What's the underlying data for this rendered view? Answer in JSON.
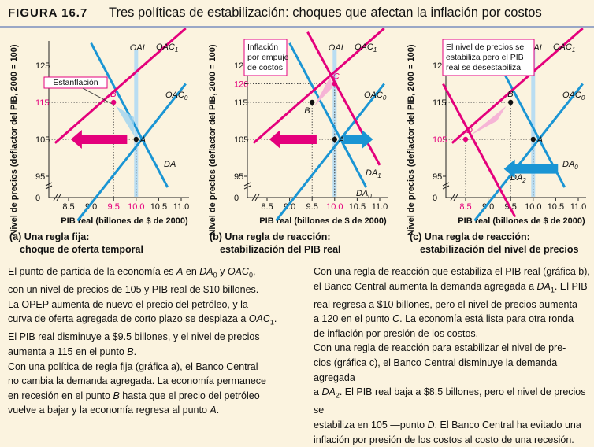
{
  "header": {
    "figure_label": "FIGURA 16.7",
    "title": "Tres políticas de estabilización: choques que afectan la inflación por costos"
  },
  "axes": {
    "ylabel": "Nivel de precios (deflactor del PIB, 2000 = 100)",
    "xlabel": "PIB real (billones de $ de 2000)",
    "origin": "0"
  },
  "curve_labels": {
    "oal": "OAL",
    "oac": "OAC",
    "oac_sub1": "1",
    "oac_sub0": "0",
    "da": "DA",
    "da_sub0": "0",
    "da_sub1": "1",
    "da_sub2": "2"
  },
  "panels": [
    {
      "caption_line1": "(a) Una regla fija:",
      "caption_line2": "choque de oferta temporal",
      "callout": [
        "Estanflación"
      ],
      "points": [
        "B",
        "A"
      ]
    },
    {
      "caption_line1": "(b) Una regla de reacción:",
      "caption_line2": "estabilización del PIB real",
      "callout": [
        "Inflación",
        "por empuje",
        "de costos"
      ],
      "points": [
        "B",
        "C",
        "A"
      ]
    },
    {
      "caption_line1": "(c) Una regla de reacción:",
      "caption_line2": "estabilización del nivel de precios",
      "callout": [
        "El nivel de precios se",
        "estabiliza pero el PIB",
        "real se desestabiliza"
      ],
      "points": [
        "B",
        "D",
        "A"
      ]
    }
  ],
  "chart_data": [
    {
      "type": "line",
      "xlabel": "PIB real (billones de $ de 2000)",
      "ylabel": "Nivel de precios (deflactor del PIB, 2000 = 100)",
      "xlim": [
        8.5,
        11.0
      ],
      "ylim": [
        95,
        125
      ],
      "x_ticks": [
        "8.5",
        "9.0",
        "9.5",
        "10.0",
        "10.5",
        "11.0"
      ],
      "y_ticks": [
        "95",
        "105",
        "115",
        "125"
      ],
      "highlight_x": [
        "9.5",
        "10.0"
      ],
      "highlight_y": [
        "115"
      ],
      "series": [
        {
          "name": "OAL",
          "x": [
            10.0,
            10.0
          ],
          "y": [
            92,
            133
          ]
        },
        {
          "name": "OAC1",
          "x": [
            8.2,
            11.1
          ],
          "y": [
            104,
            135
          ]
        },
        {
          "name": "OAC0",
          "x": [
            8.7,
            11.1
          ],
          "y": [
            83,
            120
          ]
        },
        {
          "name": "DA",
          "x": [
            9.0,
            10.7
          ],
          "y": [
            131,
            92
          ]
        }
      ],
      "points": [
        {
          "label": "A",
          "x": 10.0,
          "y": 105
        },
        {
          "label": "B",
          "x": 9.5,
          "y": 115
        }
      ],
      "colors": {
        "oac1": "#e4007c",
        "oac0": "#1a95d4",
        "da": "#1a95d4",
        "oal": "#b9ddf2"
      }
    },
    {
      "type": "line",
      "xlabel": "PIB real (billones de $ de 2000)",
      "ylabel": "Nivel de precios (deflactor del PIB, 2000 = 100)",
      "xlim": [
        8.5,
        11.0
      ],
      "ylim": [
        95,
        125
      ],
      "x_ticks": [
        "8.5",
        "9.0",
        "9.5",
        "10.0",
        "10.5",
        "11.0"
      ],
      "y_ticks": [
        "95",
        "105",
        "115",
        "120",
        "125"
      ],
      "highlight_x": [
        "10.0"
      ],
      "highlight_y": [
        "120"
      ],
      "series": [
        {
          "name": "OAL",
          "x": [
            10.0,
            10.0
          ],
          "y": [
            92,
            133
          ]
        },
        {
          "name": "OAC1",
          "x": [
            8.2,
            11.1
          ],
          "y": [
            104,
            135
          ]
        },
        {
          "name": "OAC0",
          "x": [
            8.7,
            11.1
          ],
          "y": [
            83,
            120
          ]
        },
        {
          "name": "DA0",
          "x": [
            9.0,
            10.7
          ],
          "y": [
            131,
            92
          ]
        },
        {
          "name": "DA1",
          "x": [
            9.4,
            11.0
          ],
          "y": [
            134,
            98
          ]
        }
      ],
      "points": [
        {
          "label": "A",
          "x": 10.0,
          "y": 105
        },
        {
          "label": "B",
          "x": 9.5,
          "y": 115
        },
        {
          "label": "C",
          "x": 10.0,
          "y": 120
        }
      ],
      "colors": {
        "oac1": "#e4007c",
        "oac0": "#1a95d4",
        "da0": "#1a95d4",
        "da1": "#e4007c",
        "oal": "#b9ddf2"
      }
    },
    {
      "type": "line",
      "xlabel": "PIB real (billones de $ de 2000)",
      "ylabel": "Nivel de precios (deflactor del PIB, 2000 = 100)",
      "xlim": [
        8.5,
        11.0
      ],
      "ylim": [
        95,
        125
      ],
      "x_ticks": [
        "8.5",
        "9.0",
        "9.5",
        "10.0",
        "10.5",
        "11.0"
      ],
      "y_ticks": [
        "95",
        "105",
        "115",
        "125"
      ],
      "highlight_x": [
        "8.5"
      ],
      "highlight_y": [
        "105"
      ],
      "series": [
        {
          "name": "OAL",
          "x": [
            10.0,
            10.0
          ],
          "y": [
            92,
            133
          ]
        },
        {
          "name": "OAC1",
          "x": [
            8.2,
            11.1
          ],
          "y": [
            104,
            135
          ]
        },
        {
          "name": "OAC0",
          "x": [
            8.7,
            11.1
          ],
          "y": [
            83,
            120
          ]
        },
        {
          "name": "DA0",
          "x": [
            9.0,
            10.7
          ],
          "y": [
            131,
            92
          ]
        },
        {
          "name": "DA2",
          "x": [
            8.0,
            9.6
          ],
          "y": [
            120,
            84
          ]
        }
      ],
      "points": [
        {
          "label": "A",
          "x": 10.0,
          "y": 105
        },
        {
          "label": "B",
          "x": 9.5,
          "y": 115
        },
        {
          "label": "D",
          "x": 8.5,
          "y": 105
        }
      ],
      "colors": {
        "oac1": "#e4007c",
        "oac0": "#1a95d4",
        "da0": "#1a95d4",
        "da2": "#e4007c",
        "oal": "#b9ddf2"
      }
    }
  ],
  "text": {
    "left": [
      {
        "parts": [
          "El punto de partida de la economía es ",
          {
            "i": "A"
          },
          " en ",
          {
            "i": "DA"
          },
          {
            "sub": "0"
          },
          " y ",
          {
            "i": "OAC"
          },
          {
            "sub": "0"
          },
          ","
        ]
      },
      {
        "parts": [
          "con un nivel de precios de 105 y PIB real de $10 billones."
        ]
      },
      {
        "parts": [
          "La OPEP aumenta de nuevo el precio del petróleo, y la"
        ]
      },
      {
        "parts": [
          "curva de oferta agregada de corto plazo se desplaza a ",
          {
            "i": "OAC"
          },
          {
            "sub": "1"
          },
          "."
        ]
      },
      {
        "parts": [
          "El PIB real disminuye a $9.5 billones, y el nivel de precios"
        ]
      },
      {
        "parts": [
          "aumenta a 115 en el punto ",
          {
            "i": "B"
          },
          "."
        ]
      },
      {
        "parts": [
          "Con una política de regla fija (gráfica a), el Banco Central"
        ]
      },
      {
        "parts": [
          "no cambia la demanda agregada. La economía permanece"
        ]
      },
      {
        "parts": [
          "en recesión en el punto ",
          {
            "i": "B"
          },
          " hasta que el precio del petróleo"
        ]
      },
      {
        "parts": [
          "vuelve a bajar y la economía regresa al punto ",
          {
            "i": "A"
          },
          "."
        ]
      }
    ],
    "right": [
      {
        "parts": [
          "Con una regla de reacción que estabiliza el PIB real (gráfica b),"
        ]
      },
      {
        "parts": [
          "el Banco Central aumenta la demanda agregada a ",
          {
            "i": "DA"
          },
          {
            "sub": "1"
          },
          ". El PIB"
        ]
      },
      {
        "parts": [
          "real regresa a $10 billones, pero el nivel de precios aumenta"
        ]
      },
      {
        "parts": [
          "a 120 en el punto ",
          {
            "i": "C"
          },
          ". La economía está lista para otra ronda"
        ]
      },
      {
        "parts": [
          "de inflación por presión de los costos."
        ]
      },
      {
        "parts": [
          "Con una regla de reacción para estabilizar el nivel de pre-"
        ]
      },
      {
        "parts": [
          "cios (gráfica c), el Banco Central disminuye la demanda agregada"
        ]
      },
      {
        "parts": [
          "a ",
          {
            "i": "DA"
          },
          {
            "sub": "2"
          },
          ". El PIB real baja a $8.5 billones, pero el nivel de precios se"
        ]
      },
      {
        "parts": [
          "estabiliza en 105 —punto ",
          {
            "i": "D"
          },
          ". El Banco Central ha evitado una"
        ]
      },
      {
        "parts": [
          "inflación por presión de los costos al costo de una recesión."
        ]
      }
    ]
  }
}
